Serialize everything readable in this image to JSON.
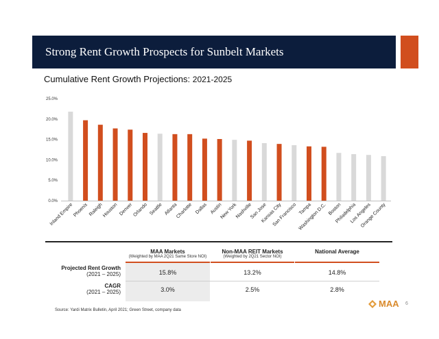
{
  "header": {
    "title": "Strong Rent Growth Prospects for Sunbelt Markets"
  },
  "colors": {
    "navy": "#0c1d3c",
    "accent": "#d14e1e",
    "gray": "#d9d9d9"
  },
  "chart_data": {
    "type": "bar",
    "title": "Cumulative Rent Growth Projections: 2021-2025",
    "title_main": "Cumulative Rent Growth Projections:",
    "title_years": "2021-2025",
    "xlabel": "",
    "ylabel": "",
    "ylim": [
      0,
      25
    ],
    "yticks": [
      "0.0%",
      "5.0%",
      "10.0%",
      "15.0%",
      "20.0%",
      "25.0%"
    ],
    "grid": false,
    "categories": [
      "Inland Empire",
      "Phoenix",
      "Raleigh",
      "Houston",
      "Denver",
      "Orlando",
      "Seattle",
      "Atlanta",
      "Charlotte",
      "Dallas",
      "Austin",
      "New York",
      "Nashville",
      "San Jose",
      "Kansas City",
      "San Francisco",
      "Tampa",
      "Washington D.C.",
      "Boston",
      "Philadelphia",
      "Los Angeles",
      "Orange County"
    ],
    "values": [
      21.8,
      19.7,
      18.6,
      17.7,
      17.4,
      16.6,
      16.4,
      16.3,
      16.3,
      15.2,
      15.1,
      14.9,
      14.7,
      14.1,
      13.9,
      13.6,
      13.3,
      13.2,
      11.7,
      11.4,
      11.2,
      10.9
    ],
    "maa_market": [
      false,
      true,
      true,
      true,
      true,
      true,
      false,
      true,
      true,
      true,
      true,
      false,
      true,
      false,
      true,
      false,
      true,
      true,
      false,
      false,
      false,
      false
    ]
  },
  "table": {
    "columns": [
      {
        "title": "MAA Markets",
        "subtitle": "(Weighted by MAA 2Q21 Same Store NOI)"
      },
      {
        "title": "Non-MAA REIT Markets",
        "subtitle": "(Weighted by 2Q21 Sector NOI)"
      },
      {
        "title": "National Average",
        "subtitle": ""
      }
    ],
    "rows": [
      {
        "label": "Projected Rent Growth",
        "sublabel": "(2021 – 2025)",
        "values": [
          "15.8%",
          "13.2%",
          "14.8%"
        ]
      },
      {
        "label": "CAGR",
        "sublabel": "(2021 – 2025)",
        "values": [
          "3.0%",
          "2.5%",
          "2.8%"
        ]
      }
    ]
  },
  "footer": {
    "source": "Source: Yardi Matrix Bulletin, April 2021; Green Street, company data",
    "logo_text": "MAA",
    "page_number": "6"
  }
}
